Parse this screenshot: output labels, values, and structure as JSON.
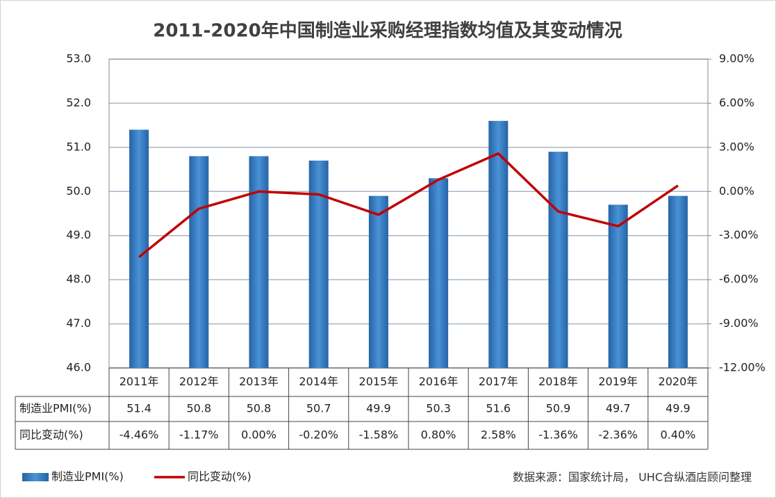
{
  "chart_data": {
    "type": "bar_line",
    "title": "2011-2020年中国制造业采购经理指数均值及其变动情况",
    "categories": [
      "2011年",
      "2012年",
      "2013年",
      "2014年",
      "2015年",
      "2016年",
      "2017年",
      "2018年",
      "2019年",
      "2020年"
    ],
    "series": [
      {
        "name": "制造业PMI(%)",
        "type": "bar",
        "color": "#2e75b6",
        "values": [
          51.4,
          50.8,
          50.8,
          50.7,
          49.9,
          50.3,
          51.6,
          50.9,
          49.7,
          49.9
        ]
      },
      {
        "name": "同比变动(%)",
        "type": "line",
        "axis": "y2",
        "color": "#c00000",
        "values": [
          -4.46,
          -1.17,
          0.0,
          -0.2,
          -1.58,
          0.8,
          2.58,
          -1.36,
          -2.36,
          0.4
        ],
        "value_labels": [
          "-4.46%",
          "-1.17%",
          "0.00%",
          "-0.20%",
          "-1.58%",
          "0.80%",
          "2.58%",
          "-1.36%",
          "-2.36%",
          "0.40%"
        ]
      }
    ],
    "ylim": [
      46,
      53
    ],
    "yticks": [
      {
        "value": 46,
        "label": "46.0"
      },
      {
        "value": 47,
        "label": "47.0"
      },
      {
        "value": 48,
        "label": "48.0"
      },
      {
        "value": 49,
        "label": "49.0"
      },
      {
        "value": 50,
        "label": "50.0"
      },
      {
        "value": 51,
        "label": "51.0"
      },
      {
        "value": 52,
        "label": "52.0"
      },
      {
        "value": 53,
        "label": "53.0"
      }
    ],
    "y2lim": [
      -12,
      9
    ],
    "y2ticks": [
      {
        "value": -12,
        "label": "-12.00%"
      },
      {
        "value": -9,
        "label": "-9.00%"
      },
      {
        "value": -6,
        "label": "-6.00%"
      },
      {
        "value": -3,
        "label": "-3.00%"
      },
      {
        "value": 0,
        "label": "0.00%"
      },
      {
        "value": 3,
        "label": "3.00%"
      },
      {
        "value": 6,
        "label": "6.00%"
      },
      {
        "value": 9,
        "label": "9.00%"
      }
    ],
    "grid": true,
    "source": "数据来源：国家统计局， UHC合纵酒店顾问整理"
  }
}
